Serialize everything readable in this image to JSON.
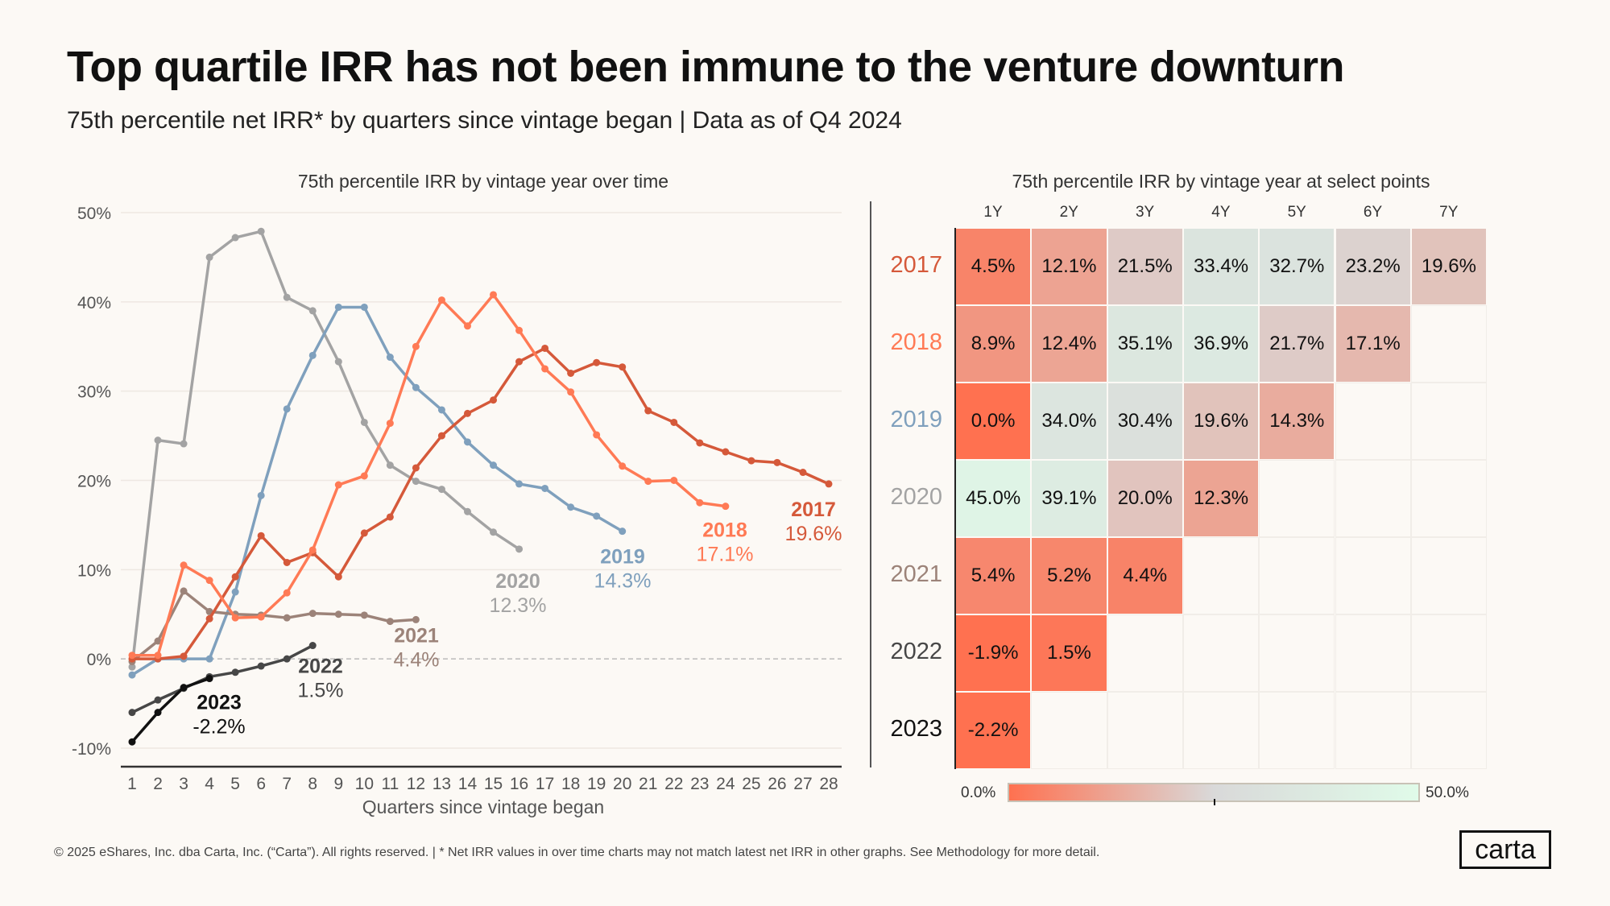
{
  "title": "Top quartile IRR has not been immune to the venture downturn",
  "subtitle": "75th percentile net IRR* by quarters since vintage began | Data as of Q4 2024",
  "footer": "© 2025 eShares, Inc. dba Carta, Inc. (“Carta”). All rights reserved.  |  * Net IRR values in over time charts may not match latest net IRR in other  graphs. See Methodology for more detail.",
  "logo": "carta",
  "chart_data": [
    {
      "type": "line",
      "title": "75th percentile IRR by vintage year over time",
      "xlabel": "Quarters since vintage began",
      "ylabel": "",
      "xlim": [
        1,
        28
      ],
      "ylim": [
        -10,
        50
      ],
      "yticks": [
        "50%",
        "40%",
        "30%",
        "20%",
        "10%",
        "0%",
        "-10%"
      ],
      "ytick_values": [
        50,
        40,
        30,
        20,
        10,
        0,
        -10
      ],
      "xticks": [
        "1",
        "2",
        "3",
        "4",
        "5",
        "6",
        "7",
        "8",
        "9",
        "10",
        "11",
        "12",
        "13",
        "14",
        "15",
        "16",
        "17",
        "18",
        "19",
        "20",
        "21",
        "22",
        "23",
        "24",
        "25",
        "26",
        "27",
        "28"
      ],
      "grid": true,
      "series": [
        {
          "name": "2017",
          "end_label": "19.6%",
          "color": "#d5593a",
          "values": [
            0,
            0,
            0.3,
            4.5,
            9.2,
            13.8,
            10.8,
            11.9,
            9.2,
            14.1,
            15.9,
            21.4,
            25,
            27.5,
            29,
            33.3,
            34.8,
            32,
            33.2,
            32.7,
            27.8,
            26.5,
            24.2,
            23.2,
            22.2,
            22,
            20.9,
            19.6
          ]
        },
        {
          "name": "2018",
          "end_label": "17.1%",
          "color": "#ff7a55",
          "values": [
            0.4,
            0.4,
            10.5,
            8.8,
            4.6,
            4.7,
            7.4,
            12.2,
            19.5,
            20.5,
            26.4,
            35,
            40.2,
            37.3,
            40.8,
            36.8,
            32.5,
            29.9,
            25.1,
            21.6,
            19.9,
            20,
            17.5,
            17.1
          ]
        },
        {
          "name": "2019",
          "end_label": "14.3%",
          "color": "#7fa0bd",
          "values": [
            -1.8,
            0,
            0,
            0,
            7.5,
            18.3,
            28,
            34,
            39.4,
            39.4,
            33.8,
            30.4,
            27.9,
            24.3,
            21.7,
            19.6,
            19.1,
            17,
            16,
            14.3
          ]
        },
        {
          "name": "2020",
          "end_label": "12.3%",
          "color": "#a3a3a3",
          "values": [
            -0.9,
            24.5,
            24.1,
            45,
            47.2,
            47.9,
            40.5,
            39,
            33.3,
            26.5,
            21.7,
            19.9,
            19,
            16.5,
            14.2,
            12.3
          ]
        },
        {
          "name": "2021",
          "end_label": "4.4%",
          "color": "#9c8379",
          "values": [
            -0.3,
            2,
            7.6,
            5.3,
            5,
            4.9,
            4.6,
            5.1,
            5,
            4.9,
            4.2,
            4.4
          ]
        },
        {
          "name": "2022",
          "end_label": "1.5%",
          "color": "#474747",
          "values": [
            -6,
            -4.6,
            -3.3,
            -2.0,
            -1.5,
            -0.8,
            0,
            1.5
          ]
        },
        {
          "name": "2023",
          "end_label": "-2.2%",
          "color": "#111111",
          "values": [
            -9.3,
            -6,
            -3.2,
            -2.2
          ]
        }
      ]
    },
    {
      "type": "heatmap",
      "title": "75th percentile IRR by vintage year at select points",
      "columns": [
        "1Y",
        "2Y",
        "3Y",
        "4Y",
        "5Y",
        "6Y",
        "7Y"
      ],
      "rows": [
        {
          "label": "2017",
          "color": "#d5593a",
          "values": [
            4.5,
            12.1,
            21.5,
            33.4,
            32.7,
            23.2,
            19.6
          ],
          "text": [
            "4.5%",
            "12.1%",
            "21.5%",
            "33.4%",
            "32.7%",
            "23.2%",
            "19.6%"
          ]
        },
        {
          "label": "2018",
          "color": "#ff7a55",
          "values": [
            8.9,
            12.4,
            35.1,
            36.9,
            21.7,
            17.1
          ],
          "text": [
            "8.9%",
            "12.4%",
            "35.1%",
            "36.9%",
            "21.7%",
            "17.1%"
          ]
        },
        {
          "label": "2019",
          "color": "#7fa0bd",
          "values": [
            0.0,
            34.0,
            30.4,
            19.6,
            14.3
          ],
          "text": [
            "0.0%",
            "34.0%",
            "30.4%",
            "19.6%",
            "14.3%"
          ]
        },
        {
          "label": "2020",
          "color": "#a3a3a3",
          "values": [
            45.0,
            39.1,
            20.0,
            12.3
          ],
          "text": [
            "45.0%",
            "39.1%",
            "20.0%",
            "12.3%"
          ]
        },
        {
          "label": "2021",
          "color": "#9c8379",
          "values": [
            5.4,
            5.2,
            4.4
          ],
          "text": [
            "5.4%",
            "5.2%",
            "4.4%"
          ]
        },
        {
          "label": "2022",
          "color": "#474747",
          "values": [
            -1.9,
            1.5
          ],
          "text": [
            "-1.9%",
            "1.5%"
          ]
        },
        {
          "label": "2023",
          "color": "#111111",
          "values": [
            -2.2
          ],
          "text": [
            "-2.2%"
          ]
        }
      ],
      "color_scale": {
        "min": 0,
        "max": 50,
        "min_label": "0.0%",
        "max_label": "50.0%",
        "colors": [
          "#ff7150",
          "#d9d9d9",
          "#e0fbe9"
        ]
      }
    }
  ]
}
